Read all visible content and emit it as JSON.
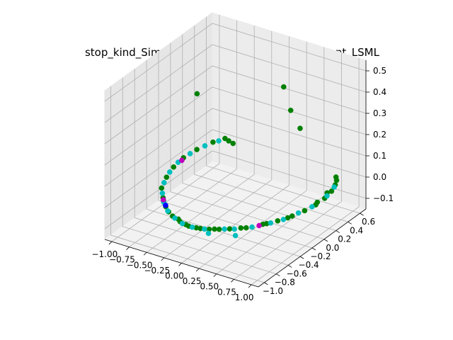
{
  "chart_data": {
    "type": "scatter",
    "projection": "3d",
    "title": "stop_kind_SimpleImputer_listwise_most_frequent_LSML",
    "xlabel": "",
    "ylabel": "",
    "zlabel": "",
    "xlim": [
      -1.1,
      1.1
    ],
    "ylim": [
      -1.1,
      0.7
    ],
    "zlim": [
      -0.15,
      0.55
    ],
    "grid": true,
    "legend": "none",
    "x_ticks": [
      "−1.00",
      "−0.75",
      "−0.50",
      "−0.25",
      "0.00",
      "0.25",
      "0.50",
      "0.75",
      "1.00"
    ],
    "y_ticks": [
      "−1.0",
      "−0.8",
      "−0.6",
      "−0.4",
      "−0.2",
      "0.0",
      "0.2",
      "0.4",
      "0.6"
    ],
    "z_ticks": [
      "−0.1",
      "0.0",
      "0.1",
      "0.2",
      "0.3",
      "0.4",
      "0.5"
    ],
    "series": [
      {
        "color": "#008000",
        "points": [
          [
            -0.85,
            0.62,
            0.0
          ],
          [
            -0.78,
            0.6,
            0.0
          ],
          [
            -0.7,
            0.58,
            0.0
          ],
          [
            -0.92,
            0.5,
            0.0
          ],
          [
            -0.98,
            0.3,
            0.0
          ],
          [
            -1.0,
            0.1,
            0.0
          ],
          [
            -0.97,
            -0.1,
            0.0
          ],
          [
            -0.9,
            -0.3,
            0.0
          ],
          [
            -0.8,
            -0.5,
            0.0
          ],
          [
            -0.65,
            -0.65,
            0.0
          ],
          [
            -0.5,
            -0.78,
            0.0
          ],
          [
            -0.3,
            -0.9,
            0.0
          ],
          [
            -0.15,
            -0.95,
            0.0
          ],
          [
            0.0,
            -0.98,
            0.0
          ],
          [
            0.15,
            -0.96,
            0.0
          ],
          [
            0.3,
            -0.9,
            0.0
          ],
          [
            0.45,
            -0.82,
            0.0
          ],
          [
            0.6,
            -0.72,
            0.0
          ],
          [
            0.72,
            -0.58,
            0.0
          ],
          [
            0.82,
            -0.45,
            0.0
          ],
          [
            0.9,
            -0.3,
            0.0
          ],
          [
            0.95,
            -0.15,
            0.0
          ],
          [
            0.98,
            0.0,
            0.0
          ],
          [
            0.98,
            0.15,
            0.0
          ],
          [
            0.95,
            0.3,
            0.0
          ],
          [
            0.9,
            0.42,
            0.0
          ],
          [
            0.85,
            0.5,
            0.0
          ],
          [
            0.8,
            0.55,
            0.0
          ],
          [
            -0.2,
            -0.92,
            0.0
          ],
          [
            0.1,
            -0.97,
            0.0
          ],
          [
            0.35,
            -0.88,
            0.0
          ],
          [
            0.55,
            -0.75,
            0.0
          ],
          [
            -0.4,
            -0.85,
            0.0
          ],
          [
            -0.6,
            -0.7,
            0.0
          ],
          [
            0.75,
            -0.55,
            0.0
          ],
          [
            0.88,
            -0.35,
            0.0
          ],
          [
            0.93,
            0.25,
            0.0
          ],
          [
            0.96,
            0.05,
            0.0
          ],
          [
            0.25,
            -0.93,
            0.0
          ],
          [
            -0.05,
            -0.97,
            0.0
          ],
          [
            -0.72,
            0.0,
            0.35
          ],
          [
            0.35,
            0.2,
            0.45
          ],
          [
            0.45,
            0.2,
            0.35
          ],
          [
            0.5,
            0.3,
            0.25
          ]
        ]
      },
      {
        "color": "#00bfbf",
        "points": [
          [
            -0.88,
            0.55,
            0.0
          ],
          [
            -0.95,
            0.4,
            0.0
          ],
          [
            -0.99,
            0.2,
            0.0
          ],
          [
            -0.99,
            0.0,
            0.0
          ],
          [
            -0.94,
            -0.2,
            0.0
          ],
          [
            -0.85,
            -0.4,
            0.0
          ],
          [
            -0.72,
            -0.58,
            0.0
          ],
          [
            -0.58,
            -0.72,
            0.0
          ],
          [
            -0.42,
            -0.84,
            0.0
          ],
          [
            -0.25,
            -0.92,
            0.0
          ],
          [
            -0.1,
            -0.97,
            0.0
          ],
          [
            0.05,
            -0.98,
            0.0
          ],
          [
            0.2,
            -0.95,
            0.0
          ],
          [
            0.4,
            -0.85,
            0.0
          ],
          [
            0.5,
            -0.8,
            0.0
          ],
          [
            0.65,
            -0.68,
            0.0
          ],
          [
            0.78,
            -0.52,
            0.0
          ],
          [
            0.86,
            -0.4,
            0.0
          ],
          [
            0.92,
            -0.22,
            0.0
          ],
          [
            0.97,
            -0.05,
            0.0
          ],
          [
            0.97,
            0.2,
            0.0
          ],
          [
            0.92,
            0.38,
            0.0
          ],
          [
            0.6,
            -0.9,
            0.0
          ],
          [
            0.3,
            -1.0,
            0.0
          ]
        ]
      },
      {
        "color": "#bf00bf",
        "points": [
          [
            -0.98,
            0.05,
            0.0
          ],
          [
            -0.62,
            -0.68,
            0.0
          ],
          [
            0.7,
            -0.62,
            0.0
          ]
        ]
      },
      {
        "color": "#0000ff",
        "points": [
          [
            -0.52,
            -0.76,
            0.0
          ]
        ]
      }
    ]
  }
}
